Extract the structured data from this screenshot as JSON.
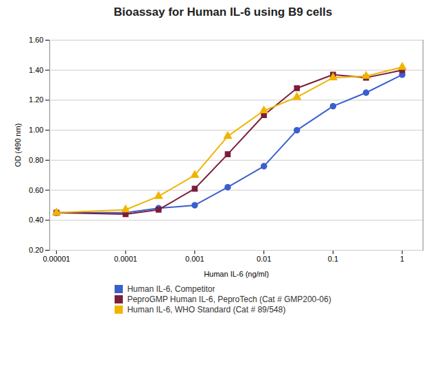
{
  "chart_data": {
    "type": "line",
    "title": "Bioassay for Human IL-6 using B9 cells",
    "xlabel": "Human IL-6 (ng/ml)",
    "ylabel": "OD (490 nm)",
    "log": "x",
    "xlim": [
      8e-06,
      2.0
    ],
    "xticks": [
      1e-05,
      0.0001,
      0.001,
      0.01,
      0.1,
      1
    ],
    "ylim": [
      0.2,
      1.6
    ],
    "yticks": [
      {
        "value": 0.2,
        "label": "0.20"
      },
      {
        "value": 0.4,
        "label": "0.40"
      },
      {
        "value": 0.6,
        "label": "0.60"
      },
      {
        "value": 0.8,
        "label": "0.80"
      },
      {
        "value": 1.0,
        "label": "1.00"
      },
      {
        "value": 1.2,
        "label": "1.20"
      },
      {
        "value": 1.4,
        "label": "1.40"
      },
      {
        "value": 1.6,
        "label": "1.60"
      }
    ],
    "grid": "y",
    "legend": "bottom",
    "x": [
      1e-05,
      0.0001,
      0.0003,
      0.001,
      0.003,
      0.01,
      0.03,
      0.1,
      0.3,
      1.0
    ],
    "series": [
      {
        "name": "Human IL-6, Competitor",
        "color": "#3a5fcd",
        "marker": "circle",
        "values": [
          0.45,
          0.45,
          0.48,
          0.5,
          0.62,
          0.76,
          1.0,
          1.16,
          1.25,
          1.37
        ]
      },
      {
        "name": "PeproGMP Human IL-6, PeproTech (Cat # GMP200-06)",
        "color": "#7b1e3c",
        "marker": "square",
        "values": [
          0.45,
          0.44,
          0.47,
          0.61,
          0.84,
          1.1,
          1.28,
          1.37,
          1.35,
          1.4
        ]
      },
      {
        "name": "Human IL-6, WHO Standard (Cat # 89/548)",
        "color": "#f0b400",
        "marker": "triangle",
        "values": [
          0.45,
          0.47,
          0.56,
          0.7,
          0.96,
          1.13,
          1.22,
          1.35,
          1.36,
          1.42
        ]
      }
    ]
  }
}
